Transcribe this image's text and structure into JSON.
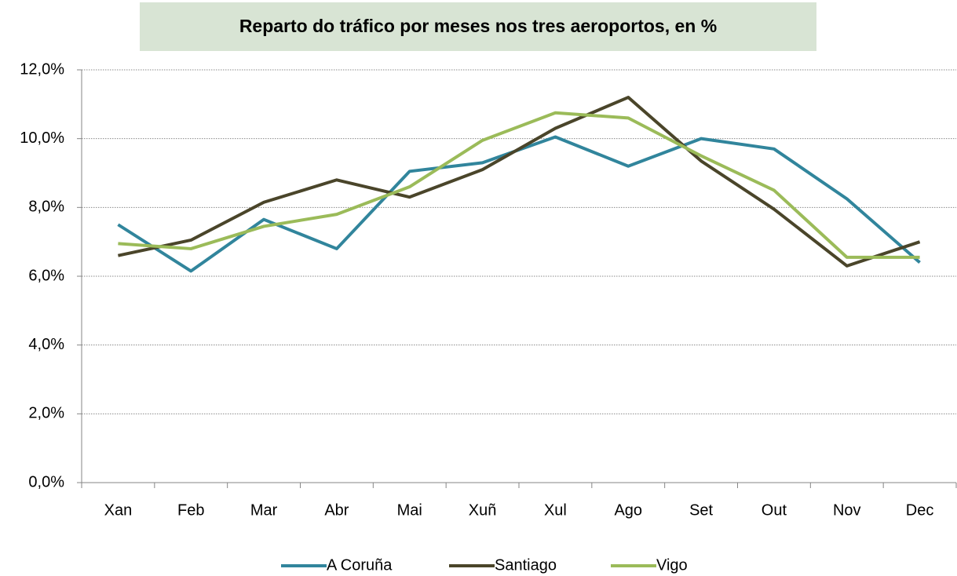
{
  "chart_data": {
    "type": "line",
    "title": "Reparto do tráfico por meses nos tres aeroportos, en %",
    "categories": [
      "Xan",
      "Feb",
      "Mar",
      "Abr",
      "Mai",
      "Xuñ",
      "Xul",
      "Ago",
      "Set",
      "Out",
      "Nov",
      "Dec"
    ],
    "series": [
      {
        "name": "A Coruña",
        "color": "#31859c",
        "values": [
          7.5,
          6.15,
          7.65,
          6.8,
          9.05,
          9.3,
          10.05,
          9.2,
          10.0,
          9.7,
          8.25,
          6.4
        ]
      },
      {
        "name": "Santiago",
        "color": "#4a452a",
        "values": [
          6.6,
          7.05,
          8.15,
          8.8,
          8.3,
          9.1,
          10.3,
          11.2,
          9.35,
          7.95,
          6.3,
          7.0
        ]
      },
      {
        "name": "Vigo",
        "color": "#9bbb59",
        "values": [
          6.95,
          6.8,
          7.45,
          7.8,
          8.6,
          9.95,
          10.75,
          10.6,
          9.5,
          8.5,
          6.55,
          6.55
        ]
      }
    ],
    "ylim": [
      0,
      12
    ],
    "yticks": [
      {
        "value": 0,
        "label": "0,0%"
      },
      {
        "value": 2,
        "label": "2,0%"
      },
      {
        "value": 4,
        "label": "4,0%"
      },
      {
        "value": 6,
        "label": "6,0%"
      },
      {
        "value": 8,
        "label": "8,0%"
      },
      {
        "value": 10,
        "label": "10,0%"
      },
      {
        "value": 12,
        "label": "12,0%"
      }
    ],
    "grid": true,
    "legend": "bottom"
  }
}
